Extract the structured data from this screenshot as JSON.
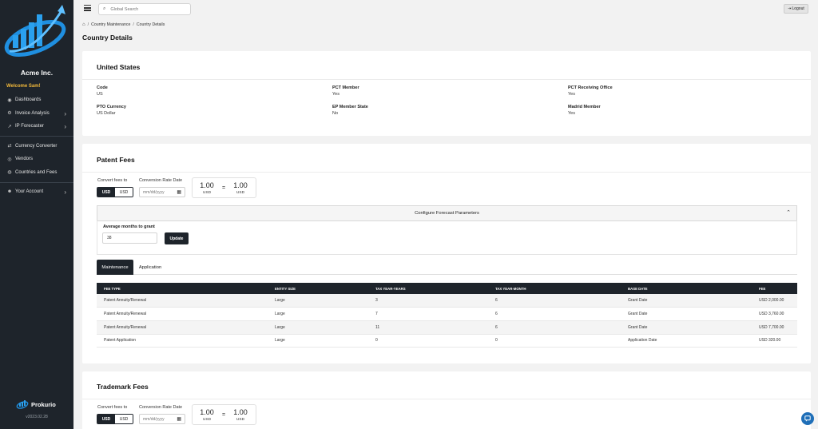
{
  "app": {
    "company": "Acme Inc.",
    "welcome": "Welcome Sam!",
    "brand": "Prokurio",
    "version": "v2023.02.28"
  },
  "sidebar": {
    "items": [
      {
        "label": "Dashboards",
        "icon": "dashboard-icon"
      },
      {
        "label": "Invoice Analysis",
        "icon": "gear-icon",
        "has_arrow": true
      },
      {
        "label": "IP Forecaster",
        "icon": "chart-icon",
        "has_arrow": true
      },
      {
        "label": "Currency Converter",
        "icon": "exchange-icon"
      },
      {
        "label": "Vendors",
        "icon": "vendor-icon"
      },
      {
        "label": "Countries and Fees",
        "icon": "globe-icon"
      },
      {
        "label": "Your Account",
        "icon": "account-icon",
        "has_arrow": true
      }
    ]
  },
  "topbar": {
    "search_placeholder": "Global Search",
    "logout_label": "Logout"
  },
  "breadcrumb": [
    "Country Maintenance",
    "Country Details"
  ],
  "page_title": "Country Details",
  "country": {
    "name": "United States",
    "fields": [
      {
        "label": "Code",
        "value": "US"
      },
      {
        "label": "PCT Member",
        "value": "Yes"
      },
      {
        "label": "PCT Receiving Office",
        "value": "Yes"
      },
      {
        "label": "PTO Currency",
        "value": "US Dollar"
      },
      {
        "label": "EP Member State",
        "value": "No"
      },
      {
        "label": "Madrid Member",
        "value": "Yes"
      }
    ]
  },
  "patent_fees": {
    "title": "Patent Fees",
    "convert_label": "Convert fees to",
    "toggle": [
      "USD",
      "USD"
    ],
    "date_label": "Conversion Rate Date",
    "date_placeholder": "mm/dd/yyyy",
    "rate_left": "1.00",
    "rate_left_cur": "USD",
    "rate_eq": "=",
    "rate_right": "1.00",
    "rate_right_cur": "USD",
    "forecast_title": "Configure Forecast Parameters",
    "months_label": "Average months to grant",
    "months_value": "38",
    "update_label": "Update",
    "tabs": [
      "Maintenance",
      "Application"
    ],
    "table": {
      "headers": [
        "FEE TYPE",
        "ENTITY SIZE",
        "TAX YEAR-YEARS",
        "TAX YEAR-MONTH",
        "BASE DATE",
        "FEE"
      ],
      "rows": [
        [
          "Patent Annuity/Renewal",
          "Large",
          "3",
          "6",
          "Grant Date",
          "USD 2,000.00"
        ],
        [
          "Patent Annuity/Renewal",
          "Large",
          "7",
          "6",
          "Grant Date",
          "USD 3,760.00"
        ],
        [
          "Patent Annuity/Renewal",
          "Large",
          "11",
          "6",
          "Grant Date",
          "USD 7,700.00"
        ],
        [
          "Patent Application",
          "Large",
          "0",
          "0",
          "Application Date",
          "USD 320.00"
        ]
      ]
    }
  },
  "trademark_fees": {
    "title": "Trademark Fees",
    "convert_label": "Convert fees to",
    "toggle": [
      "USD",
      "USD"
    ],
    "date_label": "Conversion Rate Date",
    "date_placeholder": "mm/dd/yyyy",
    "rate_left": "1.00",
    "rate_left_cur": "USD",
    "rate_eq": "=",
    "rate_right": "1.00",
    "rate_right_cur": "USD"
  },
  "colors": {
    "sidebar_bg": "#1e242b",
    "accent": "#f2b93b",
    "logo_blue": "#1f8fe0",
    "chat_blue": "#1f6fb8"
  }
}
